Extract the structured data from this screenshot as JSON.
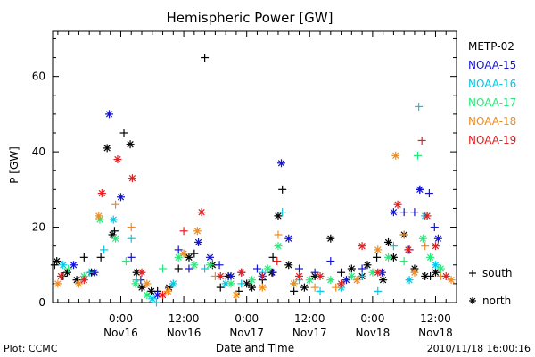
{
  "chart_data": {
    "type": "scatter",
    "title": "Hemispheric Power [GW]",
    "ylabel": "P [GW]",
    "xlabel": "Date and Time",
    "xlim": [
      "2010-11-15T11:00",
      "2010-11-18T16:00"
    ],
    "ylim": [
      0,
      72
    ],
    "yticks": [
      0,
      20,
      40,
      60
    ],
    "xticks": [
      {
        "t": "2010-11-16T00:00",
        "time": "0:00",
        "date": "Nov16"
      },
      {
        "t": "2010-11-16T12:00",
        "time": "12:00",
        "date": "Nov16"
      },
      {
        "t": "2010-11-17T00:00",
        "time": "0:00",
        "date": "Nov17"
      },
      {
        "t": "2010-11-17T12:00",
        "time": "12:00",
        "date": "Nov17"
      },
      {
        "t": "2010-11-18T00:00",
        "time": "0:00",
        "date": "Nov18"
      },
      {
        "t": "2010-11-18T12:00",
        "time": "12:00",
        "date": "Nov18"
      }
    ],
    "legend_position": "right",
    "series": [
      {
        "name": "METP-02",
        "color": "#000000",
        "points": [
          [
            "2010-11-15T11:24",
            "+",
            10
          ],
          [
            "2010-11-15T11:48",
            "*",
            11
          ],
          [
            "2010-11-15T13:00",
            "+",
            7
          ],
          [
            "2010-11-15T13:48",
            "*",
            8
          ],
          [
            "2010-11-15T15:36",
            "*",
            6
          ],
          [
            "2010-11-15T17:00",
            "+",
            12
          ],
          [
            "2010-11-15T18:24",
            "*",
            8
          ],
          [
            "2010-11-15T20:12",
            "+",
            12
          ],
          [
            "2010-11-15T21:24",
            "*",
            41
          ],
          [
            "2010-11-15T22:24",
            "*",
            18
          ],
          [
            "2010-11-15T22:48",
            "+",
            19
          ],
          [
            "2010-11-16T00:36",
            "+",
            45
          ],
          [
            "2010-11-16T01:48",
            "*",
            42
          ],
          [
            "2010-11-16T03:00",
            "*",
            8
          ],
          [
            "2010-11-16T04:00",
            "*",
            4
          ],
          [
            "2010-11-16T05:48",
            "*",
            3
          ],
          [
            "2010-11-16T07:00",
            "+",
            3
          ],
          [
            "2010-11-16T09:12",
            "*",
            4
          ],
          [
            "2010-11-16T11:00",
            "+",
            9
          ],
          [
            "2010-11-16T13:00",
            "*",
            12
          ],
          [
            "2010-11-16T14:00",
            "+",
            13
          ],
          [
            "2010-11-16T16:00",
            "+",
            65
          ],
          [
            "2010-11-16T17:30",
            "*",
            10
          ],
          [
            "2010-11-16T19:00",
            "+",
            4
          ],
          [
            "2010-11-16T20:30",
            "*",
            7
          ],
          [
            "2010-11-16T22:30",
            "+",
            3
          ],
          [
            "2010-11-17T00:00",
            "*",
            5
          ],
          [
            "2010-11-17T01:00",
            "*",
            4
          ],
          [
            "2010-11-17T03:00",
            "+",
            6
          ],
          [
            "2010-11-17T04:48",
            "*",
            8
          ],
          [
            "2010-11-17T05:00",
            "+",
            12
          ],
          [
            "2010-11-17T06:00",
            "*",
            23
          ],
          [
            "2010-11-17T06:48",
            "+",
            30
          ],
          [
            "2010-11-17T08:00",
            "*",
            10
          ],
          [
            "2010-11-17T09:00",
            "+",
            3
          ],
          [
            "2010-11-17T11:00",
            "*",
            4
          ],
          [
            "2010-11-17T13:00",
            "*",
            7
          ],
          [
            "2010-11-17T16:00",
            "*",
            17
          ],
          [
            "2010-11-17T18:00",
            "+",
            8
          ],
          [
            "2010-11-17T20:00",
            "*",
            9
          ],
          [
            "2010-11-17T22:00",
            "*",
            7
          ],
          [
            "2010-11-17T23:00",
            "*",
            10
          ],
          [
            "2010-11-18T00:48",
            "+",
            12
          ],
          [
            "2010-11-18T02:00",
            "*",
            6
          ],
          [
            "2010-11-18T03:00",
            "*",
            16
          ],
          [
            "2010-11-18T04:00",
            "*",
            12
          ],
          [
            "2010-11-18T06:00",
            "*",
            18
          ],
          [
            "2010-11-18T08:00",
            "*",
            9
          ],
          [
            "2010-11-18T09:00",
            "+",
            30
          ],
          [
            "2010-11-18T10:00",
            "*",
            7
          ],
          [
            "2010-11-18T11:00",
            "+",
            7
          ],
          [
            "2010-11-18T12:00",
            "*",
            8
          ]
        ]
      },
      {
        "name": "NOAA-15",
        "color": "#1414d2",
        "points": [
          [
            "2010-11-15T15:00",
            "*",
            10
          ],
          [
            "2010-11-15T19:00",
            "*",
            8
          ],
          [
            "2010-11-15T21:48",
            "*",
            50
          ],
          [
            "2010-11-16T00:00",
            "*",
            28
          ],
          [
            "2010-11-16T02:00",
            "+",
            12
          ],
          [
            "2010-11-16T03:48",
            "+",
            6
          ],
          [
            "2010-11-16T07:00",
            "*",
            2
          ],
          [
            "2010-11-16T11:00",
            "+",
            14
          ],
          [
            "2010-11-16T13:00",
            "+",
            9
          ],
          [
            "2010-11-16T14:48",
            "*",
            16
          ],
          [
            "2010-11-16T17:00",
            "*",
            12
          ],
          [
            "2010-11-16T18:48",
            "+",
            10
          ],
          [
            "2010-11-16T21:00",
            "*",
            7
          ],
          [
            "2010-11-16T23:00",
            "+",
            8
          ],
          [
            "2010-11-17T02:00",
            "+",
            9
          ],
          [
            "2010-11-17T03:00",
            "*",
            7
          ],
          [
            "2010-11-17T05:00",
            "+",
            8
          ],
          [
            "2010-11-17T06:36",
            "*",
            37
          ],
          [
            "2010-11-17T08:00",
            "*",
            17
          ],
          [
            "2010-11-17T10:00",
            "+",
            9
          ],
          [
            "2010-11-17T13:00",
            "+",
            8
          ],
          [
            "2010-11-17T16:00",
            "+",
            11
          ],
          [
            "2010-11-17T19:00",
            "*",
            6
          ],
          [
            "2010-11-17T22:00",
            "+",
            9
          ],
          [
            "2010-11-18T01:48",
            "*",
            8
          ],
          [
            "2010-11-18T04:00",
            "*",
            24
          ],
          [
            "2010-11-18T06:00",
            "+",
            24
          ],
          [
            "2010-11-18T07:00",
            "+",
            14
          ],
          [
            "2010-11-18T08:00",
            "+",
            24
          ],
          [
            "2010-11-18T09:00",
            "*",
            30
          ],
          [
            "2010-11-18T10:48",
            "+",
            29
          ],
          [
            "2010-11-18T11:48",
            "+",
            20
          ],
          [
            "2010-11-18T12:30",
            "*",
            17
          ]
        ]
      },
      {
        "name": "NOAA-16",
        "color": "#00c8e6",
        "points": [
          [
            "2010-11-15T13:00",
            "*",
            10
          ],
          [
            "2010-11-15T18:00",
            "+",
            8
          ],
          [
            "2010-11-15T20:48",
            "+",
            14
          ],
          [
            "2010-11-15T22:36",
            "*",
            22
          ],
          [
            "2010-11-16T02:00",
            "+",
            17
          ],
          [
            "2010-11-16T03:00",
            "+",
            6
          ],
          [
            "2010-11-16T06:00",
            "*",
            1
          ],
          [
            "2010-11-16T06:48",
            "+",
            0
          ],
          [
            "2010-11-16T10:00",
            "*",
            5
          ],
          [
            "2010-11-16T12:00",
            "+",
            13
          ],
          [
            "2010-11-16T16:00",
            "+",
            9
          ],
          [
            "2010-11-16T20:00",
            "*",
            5
          ],
          [
            "2010-11-16T23:00",
            "+",
            5
          ],
          [
            "2010-11-17T03:00",
            "+",
            8
          ],
          [
            "2010-11-17T06:48",
            "+",
            24
          ],
          [
            "2010-11-17T10:00",
            "+",
            6
          ],
          [
            "2010-11-17T14:00",
            "+",
            3
          ],
          [
            "2010-11-17T18:00",
            "*",
            4
          ],
          [
            "2010-11-17T22:00",
            "+",
            7
          ],
          [
            "2010-11-18T01:00",
            "+",
            3
          ],
          [
            "2010-11-18T04:00",
            "+",
            15
          ],
          [
            "2010-11-18T07:00",
            "*",
            6
          ],
          [
            "2010-11-18T08:48",
            "+",
            52
          ],
          [
            "2010-11-18T10:00",
            "*",
            23
          ],
          [
            "2010-11-18T12:00",
            "*",
            10
          ]
        ]
      },
      {
        "name": "NOAA-17",
        "color": "#2ae87a",
        "points": [
          [
            "2010-11-15T14:00",
            "+",
            9
          ],
          [
            "2010-11-15T17:00",
            "*",
            7
          ],
          [
            "2010-11-15T20:00",
            "*",
            22
          ],
          [
            "2010-11-15T23:00",
            "*",
            17
          ],
          [
            "2010-11-16T01:00",
            "+",
            11
          ],
          [
            "2010-11-16T02:48",
            "*",
            5
          ],
          [
            "2010-11-16T05:00",
            "*",
            2
          ],
          [
            "2010-11-16T08:00",
            "+",
            9
          ],
          [
            "2010-11-16T11:00",
            "*",
            12
          ],
          [
            "2010-11-16T14:00",
            "*",
            10
          ],
          [
            "2010-11-16T17:00",
            "*",
            10
          ],
          [
            "2010-11-16T21:00",
            "*",
            5
          ],
          [
            "2010-11-17T01:00",
            "*",
            6
          ],
          [
            "2010-11-17T04:00",
            "*",
            9
          ],
          [
            "2010-11-17T06:00",
            "*",
            15
          ],
          [
            "2010-11-17T09:00",
            "*",
            5
          ],
          [
            "2010-11-17T12:00",
            "*",
            6
          ],
          [
            "2010-11-17T16:00",
            "*",
            6
          ],
          [
            "2010-11-17T20:00",
            "*",
            7
          ],
          [
            "2010-11-18T00:00",
            "*",
            8
          ],
          [
            "2010-11-18T03:00",
            "*",
            12
          ],
          [
            "2010-11-18T06:00",
            "+",
            11
          ],
          [
            "2010-11-18T08:36",
            "+",
            39
          ],
          [
            "2010-11-18T09:36",
            "*",
            17
          ],
          [
            "2010-11-18T11:00",
            "*",
            12
          ],
          [
            "2010-11-18T13:00",
            "*",
            9
          ]
        ]
      },
      {
        "name": "NOAA-18",
        "color": "#f08c1e",
        "points": [
          [
            "2010-11-15T12:00",
            "*",
            5
          ],
          [
            "2010-11-15T16:00",
            "*",
            5
          ],
          [
            "2010-11-15T19:48",
            "*",
            23
          ],
          [
            "2010-11-15T23:00",
            "+",
            26
          ],
          [
            "2010-11-16T02:00",
            "+",
            20
          ],
          [
            "2010-11-16T05:00",
            "*",
            5
          ],
          [
            "2010-11-16T09:00",
            "*",
            3
          ],
          [
            "2010-11-16T12:00",
            "*",
            13
          ],
          [
            "2010-11-16T14:36",
            "*",
            19
          ],
          [
            "2010-11-16T18:00",
            "+",
            7
          ],
          [
            "2010-11-16T22:00",
            "*",
            2
          ],
          [
            "2010-11-17T03:00",
            "*",
            4
          ],
          [
            "2010-11-17T06:00",
            "+",
            18
          ],
          [
            "2010-11-17T09:00",
            "*",
            5
          ],
          [
            "2010-11-17T13:00",
            "+",
            4
          ],
          [
            "2010-11-17T17:00",
            "+",
            4
          ],
          [
            "2010-11-17T21:00",
            "*",
            6
          ],
          [
            "2010-11-18T01:00",
            "*",
            14
          ],
          [
            "2010-11-18T04:24",
            "*",
            39
          ],
          [
            "2010-11-18T06:00",
            "+",
            18
          ],
          [
            "2010-11-18T08:00",
            "*",
            8
          ],
          [
            "2010-11-18T10:00",
            "+",
            15
          ],
          [
            "2010-11-18T13:00",
            "+",
            7
          ],
          [
            "2010-11-18T15:00",
            "*",
            6
          ]
        ]
      },
      {
        "name": "NOAA-19",
        "color": "#e61e1e",
        "points": [
          [
            "2010-11-15T12:36",
            "*",
            7
          ],
          [
            "2010-11-15T17:00",
            "*",
            6
          ],
          [
            "2010-11-15T20:24",
            "*",
            29
          ],
          [
            "2010-11-15T23:24",
            "*",
            38
          ],
          [
            "2010-11-16T02:12",
            "*",
            33
          ],
          [
            "2010-11-16T04:00",
            "*",
            8
          ],
          [
            "2010-11-16T08:00",
            "*",
            2
          ],
          [
            "2010-11-16T12:00",
            "+",
            19
          ],
          [
            "2010-11-16T15:24",
            "*",
            24
          ],
          [
            "2010-11-16T19:00",
            "*",
            7
          ],
          [
            "2010-11-16T23:00",
            "*",
            8
          ],
          [
            "2010-11-17T03:00",
            "+",
            7
          ],
          [
            "2010-11-17T05:48",
            "+",
            11
          ],
          [
            "2010-11-17T10:00",
            "*",
            7
          ],
          [
            "2010-11-17T14:00",
            "*",
            7
          ],
          [
            "2010-11-17T18:00",
            "*",
            5
          ],
          [
            "2010-11-17T22:00",
            "*",
            15
          ],
          [
            "2010-11-18T01:00",
            "*",
            8
          ],
          [
            "2010-11-18T04:48",
            "*",
            26
          ],
          [
            "2010-11-18T06:48",
            "*",
            14
          ],
          [
            "2010-11-18T09:24",
            "+",
            43
          ],
          [
            "2010-11-18T10:24",
            "*",
            23
          ],
          [
            "2010-11-18T12:00",
            "*",
            15
          ],
          [
            "2010-11-18T14:00",
            "*",
            7
          ]
        ]
      }
    ],
    "marker_legend": [
      {
        "marker": "+",
        "label": "south"
      },
      {
        "marker": "*",
        "label": "north"
      }
    ]
  },
  "footer": {
    "left": "Plot: CCMC",
    "right": "2010/11/18 16:00:16"
  }
}
